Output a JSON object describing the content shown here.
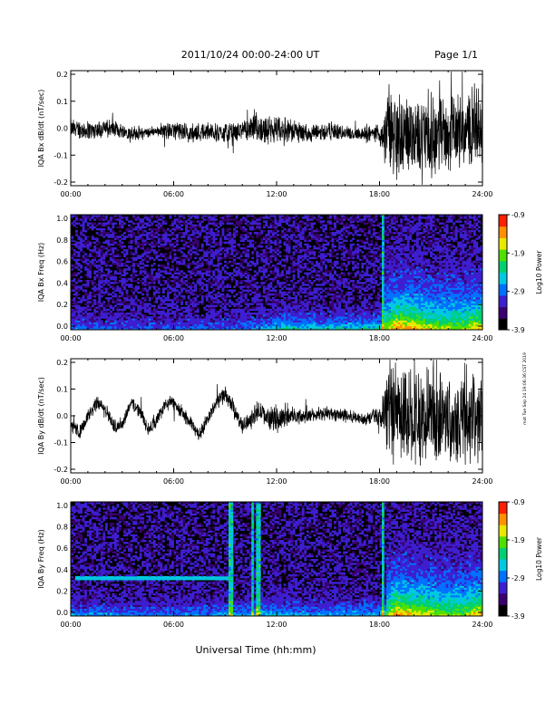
{
  "header": {
    "title": "2011/10/24  00:00-24:00 UT",
    "page": "Page 1/1"
  },
  "footer": {
    "xlabel": "Universal Time (hh:mm)",
    "stamp": "mot Tue Sep 24 19:06:36 CST 2019"
  },
  "colorbar": {
    "label": "Log10 Power",
    "ticks": [
      "-0.9",
      "-1.9",
      "-2.9",
      "-3.9"
    ],
    "colors": [
      "#000000",
      "#3a0070",
      "#3d1fd0",
      "#0070ff",
      "#00c8e0",
      "#00d070",
      "#50e000",
      "#e8e800",
      "#ff9000",
      "#ff2000"
    ]
  },
  "chart_data": [
    {
      "type": "line",
      "ylabel": "IQA Bx dB/dt (nT/sec)",
      "xticks": [
        "00:00",
        "06:00",
        "12:00",
        "18:00",
        "24:00"
      ],
      "yticks": [
        "0.2",
        "0.1",
        "0.0",
        "-0.1",
        "-0.2"
      ],
      "xlim": [
        0,
        24
      ],
      "ylim": [
        -0.2,
        0.2
      ],
      "series": [
        {
          "x": [
            0,
            1,
            2,
            3,
            4,
            5,
            6,
            7,
            8,
            9,
            10,
            11,
            12,
            13,
            14,
            15,
            16,
            17,
            18,
            18.5,
            19,
            20,
            21,
            22,
            23,
            24
          ],
          "center": [
            0,
            -0.01,
            0,
            -0.01,
            -0.02,
            -0.01,
            -0.01,
            -0.02,
            -0.01,
            -0.02,
            -0.01,
            0,
            -0.01,
            -0.01,
            -0.02,
            -0.01,
            -0.02,
            -0.02,
            -0.02,
            -0.02,
            -0.03,
            -0.02,
            -0.03,
            -0.02,
            -0.01,
            0
          ],
          "amp": [
            0.04,
            0.04,
            0.04,
            0.03,
            0.03,
            0.02,
            0.04,
            0.04,
            0.04,
            0.04,
            0.04,
            0.06,
            0.06,
            0.05,
            0.04,
            0.04,
            0.03,
            0.03,
            0.04,
            0.2,
            0.2,
            0.15,
            0.18,
            0.15,
            0.15,
            0.2
          ]
        }
      ]
    },
    {
      "type": "heatmap",
      "ylabel": "IQA Bx Freq (Hz)",
      "xticks": [
        "00:00",
        "06:00",
        "12:00",
        "18:00",
        "24:00"
      ],
      "yticks": [
        "1.0",
        "0.8",
        "0.6",
        "0.4",
        "0.2",
        "0.0"
      ],
      "xlim": [
        0,
        24
      ],
      "ylim": [
        0,
        1
      ],
      "zlim": [
        -3.9,
        -0.9
      ],
      "activity_hours": [
        0,
        1,
        2,
        3,
        4,
        5,
        6,
        7,
        8,
        9,
        10,
        11,
        12,
        13,
        14,
        15,
        16,
        17,
        18,
        19,
        20,
        21,
        22,
        23,
        24
      ],
      "activity_level": [
        0.25,
        0.25,
        0.2,
        0.2,
        0.2,
        0.2,
        0.2,
        0.2,
        0.2,
        0.2,
        0.25,
        0.3,
        0.5,
        0.5,
        0.45,
        0.45,
        0.45,
        0.45,
        0.5,
        0.95,
        0.85,
        0.75,
        0.7,
        0.7,
        0.85
      ],
      "vertical_bands_hours": [
        18.2
      ]
    },
    {
      "type": "line",
      "ylabel": "IQA By dB/dt (nT/sec)",
      "xticks": [
        "00:00",
        "06:00",
        "12:00",
        "18:00",
        "24:00"
      ],
      "yticks": [
        "0.2",
        "0.1",
        "0.0",
        "-0.1",
        "-0.2"
      ],
      "xlim": [
        0,
        24
      ],
      "ylim": [
        -0.2,
        0.2
      ],
      "series": [
        {
          "x": [
            0,
            0.5,
            1,
            1.5,
            2,
            2.5,
            3,
            3.5,
            4,
            4.5,
            5,
            5.5,
            6,
            6.5,
            7,
            7.5,
            8,
            8.5,
            9,
            9.5,
            10,
            10.5,
            11,
            11.5,
            12,
            13,
            14,
            15,
            16,
            17,
            18,
            18.5,
            19,
            20,
            21,
            22,
            23,
            24
          ],
          "center": [
            -0.04,
            -0.06,
            -0.01,
            0.05,
            0.03,
            -0.04,
            -0.03,
            0.05,
            0.02,
            -0.05,
            -0.02,
            0.04,
            0.05,
            0.01,
            -0.03,
            -0.07,
            -0.01,
            0.05,
            0.08,
            0.03,
            -0.04,
            -0.01,
            0.02,
            -0.01,
            -0.01,
            0,
            0,
            0.01,
            0,
            -0.01,
            0,
            0,
            0,
            0,
            0,
            0,
            0,
            0
          ],
          "amp": [
            0.03,
            0.03,
            0.03,
            0.03,
            0.03,
            0.03,
            0.03,
            0.03,
            0.03,
            0.03,
            0.03,
            0.03,
            0.03,
            0.03,
            0.03,
            0.03,
            0.03,
            0.03,
            0.04,
            0.03,
            0.03,
            0.04,
            0.04,
            0.04,
            0.06,
            0.03,
            0.03,
            0.03,
            0.03,
            0.03,
            0.04,
            0.2,
            0.2,
            0.2,
            0.2,
            0.2,
            0.2,
            0.2
          ]
        }
      ]
    },
    {
      "type": "heatmap",
      "ylabel": "IQA By Freq (Hz)",
      "xticks": [
        "00:00",
        "06:00",
        "12:00",
        "18:00",
        "24:00"
      ],
      "yticks": [
        "1.0",
        "0.8",
        "0.6",
        "0.4",
        "0.2",
        "0.0"
      ],
      "xlim": [
        0,
        24
      ],
      "ylim": [
        0,
        1
      ],
      "zlim": [
        -3.9,
        -0.9
      ],
      "activity_hours": [
        0,
        1,
        2,
        3,
        4,
        5,
        6,
        7,
        8,
        9,
        10,
        11,
        12,
        13,
        14,
        15,
        16,
        17,
        18,
        19,
        20,
        21,
        22,
        23,
        24
      ],
      "activity_level": [
        0.3,
        0.3,
        0.3,
        0.25,
        0.25,
        0.25,
        0.25,
        0.3,
        0.3,
        0.35,
        0.35,
        0.4,
        0.4,
        0.35,
        0.35,
        0.35,
        0.35,
        0.35,
        0.4,
        0.95,
        0.85,
        0.75,
        0.7,
        0.7,
        0.9
      ],
      "vertical_bands_hours": [
        9.3,
        10.6,
        10.9,
        18.2
      ],
      "horizontal_line": {
        "freq": 0.33,
        "hours": [
          0.3,
          9.2
        ]
      }
    }
  ]
}
